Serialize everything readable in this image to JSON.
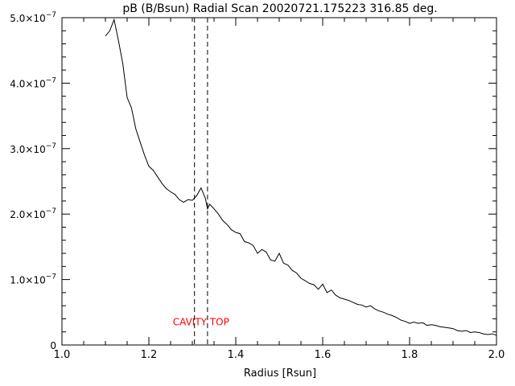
{
  "chart_data": {
    "type": "line",
    "title": "pB (B/Bsun) Radial Scan 20020721.175223 316.85 deg.",
    "xlabel": "Radius [Rsun]",
    "ylabel": "",
    "xlim": [
      1.0,
      2.0
    ],
    "ylim": [
      0,
      5e-07
    ],
    "grid": false,
    "x_ticks": [
      {
        "value": 1.0,
        "label": "1.0"
      },
      {
        "value": 1.2,
        "label": "1.2"
      },
      {
        "value": 1.4,
        "label": "1.4"
      },
      {
        "value": 1.6,
        "label": "1.6"
      },
      {
        "value": 1.8,
        "label": "1.8"
      },
      {
        "value": 2.0,
        "label": "2.0"
      }
    ],
    "y_ticks": [
      {
        "value": 0,
        "mantissa": "0",
        "exp": ""
      },
      {
        "value": 1e-07,
        "mantissa": "1.0×10",
        "exp": "−7"
      },
      {
        "value": 2e-07,
        "mantissa": "2.0×10",
        "exp": "−7"
      },
      {
        "value": 3e-07,
        "mantissa": "3.0×10",
        "exp": "−7"
      },
      {
        "value": 4e-07,
        "mantissa": "4.0×10",
        "exp": "−7"
      },
      {
        "value": 5e-07,
        "mantissa": "5.0×10",
        "exp": "−7"
      }
    ],
    "series": [
      {
        "color": "#000000",
        "points": [
          [
            1.1,
            4.72e-07
          ],
          [
            1.11,
            4.8e-07
          ],
          [
            1.12,
            4.97e-07
          ],
          [
            1.13,
            4.65e-07
          ],
          [
            1.14,
            4.3e-07
          ],
          [
            1.15,
            3.78e-07
          ],
          [
            1.16,
            3.62e-07
          ],
          [
            1.17,
            3.3e-07
          ],
          [
            1.18,
            3.1e-07
          ],
          [
            1.19,
            2.9e-07
          ],
          [
            1.2,
            2.73e-07
          ],
          [
            1.21,
            2.67e-07
          ],
          [
            1.22,
            2.57e-07
          ],
          [
            1.23,
            2.47e-07
          ],
          [
            1.24,
            2.39e-07
          ],
          [
            1.25,
            2.34e-07
          ],
          [
            1.26,
            2.3e-07
          ],
          [
            1.27,
            2.22e-07
          ],
          [
            1.28,
            2.18e-07
          ],
          [
            1.29,
            2.22e-07
          ],
          [
            1.3,
            2.21e-07
          ],
          [
            1.31,
            2.28e-07
          ],
          [
            1.32,
            2.4e-07
          ],
          [
            1.33,
            2.24e-07
          ],
          [
            1.335,
            2.08e-07
          ],
          [
            1.34,
            2.15e-07
          ],
          [
            1.35,
            2.08e-07
          ],
          [
            1.36,
            2e-07
          ],
          [
            1.37,
            1.9e-07
          ],
          [
            1.38,
            1.84e-07
          ],
          [
            1.39,
            1.76e-07
          ],
          [
            1.4,
            1.72e-07
          ],
          [
            1.41,
            1.7e-07
          ],
          [
            1.42,
            1.58e-07
          ],
          [
            1.43,
            1.56e-07
          ],
          [
            1.44,
            1.52e-07
          ],
          [
            1.45,
            1.4e-07
          ],
          [
            1.46,
            1.46e-07
          ],
          [
            1.47,
            1.42e-07
          ],
          [
            1.48,
            1.3e-07
          ],
          [
            1.49,
            1.28e-07
          ],
          [
            1.5,
            1.4e-07
          ],
          [
            1.51,
            1.25e-07
          ],
          [
            1.52,
            1.22e-07
          ],
          [
            1.53,
            1.14e-07
          ],
          [
            1.54,
            1.1e-07
          ],
          [
            1.55,
            1.02e-07
          ],
          [
            1.56,
            9.8e-08
          ],
          [
            1.57,
            9.4e-08
          ],
          [
            1.58,
            9.2e-08
          ],
          [
            1.59,
            8.5e-08
          ],
          [
            1.6,
            9.3e-08
          ],
          [
            1.61,
            8e-08
          ],
          [
            1.62,
            8.4e-08
          ],
          [
            1.63,
            7.6e-08
          ],
          [
            1.64,
            7.2e-08
          ],
          [
            1.65,
            7e-08
          ],
          [
            1.66,
            6.8e-08
          ],
          [
            1.67,
            6.5e-08
          ],
          [
            1.68,
            6.2e-08
          ],
          [
            1.69,
            6.1e-08
          ],
          [
            1.7,
            5.8e-08
          ],
          [
            1.71,
            6e-08
          ],
          [
            1.72,
            5.5e-08
          ],
          [
            1.73,
            5.2e-08
          ],
          [
            1.74,
            5e-08
          ],
          [
            1.75,
            4.7e-08
          ],
          [
            1.76,
            4.5e-08
          ],
          [
            1.77,
            4.2e-08
          ],
          [
            1.78,
            3.8e-08
          ],
          [
            1.79,
            3.6e-08
          ],
          [
            1.8,
            3.3e-08
          ],
          [
            1.81,
            3.5e-08
          ],
          [
            1.82,
            3.3e-08
          ],
          [
            1.83,
            3.4e-08
          ],
          [
            1.84,
            3e-08
          ],
          [
            1.85,
            3.1e-08
          ],
          [
            1.86,
            3e-08
          ],
          [
            1.87,
            2.8e-08
          ],
          [
            1.88,
            2.7e-08
          ],
          [
            1.89,
            2.6e-08
          ],
          [
            1.9,
            2.5e-08
          ],
          [
            1.91,
            2.2e-08
          ],
          [
            1.92,
            2.1e-08
          ],
          [
            1.93,
            2.2e-08
          ],
          [
            1.94,
            1.9e-08
          ],
          [
            1.95,
            2e-08
          ],
          [
            1.96,
            1.9e-08
          ],
          [
            1.97,
            1.7e-08
          ],
          [
            1.98,
            1.6e-08
          ],
          [
            1.99,
            1.7e-08
          ],
          [
            2.0,
            1.5e-08
          ]
        ]
      }
    ],
    "vlines": [
      {
        "x": 1.305,
        "style": "dashed",
        "color": "#000000"
      },
      {
        "x": 1.335,
        "style": "dashed",
        "color": "#000000"
      }
    ],
    "annotations": [
      {
        "text": "CAVITY TOP",
        "x": 1.32,
        "y": 3.5e-08,
        "color": "#ff0000"
      }
    ]
  }
}
